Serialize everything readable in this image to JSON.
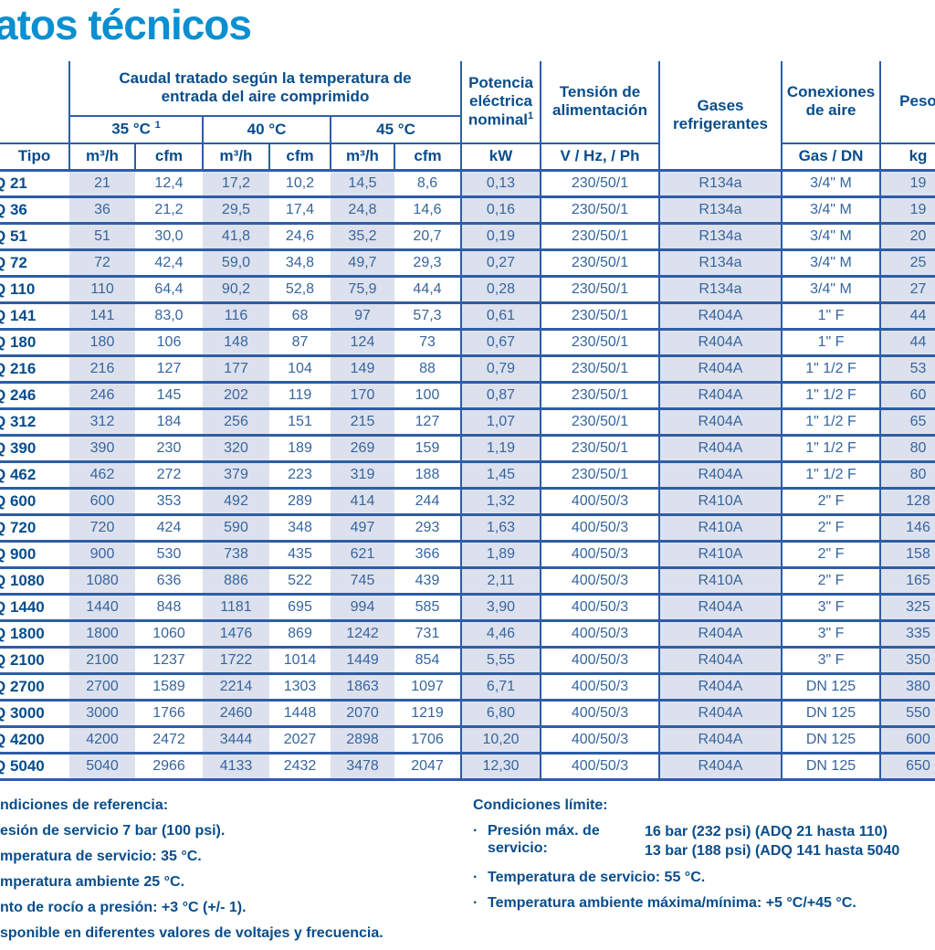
{
  "page": {
    "title": "atos técnicos"
  },
  "table": {
    "header": {
      "caudal": "Caudal tratado según la temperatura de entrada del aire comprimido",
      "temp35": "35 °C",
      "temp35_sup": "1",
      "temp40": "40 °C",
      "temp45": "45 °C",
      "potencia": "Potencia eléctrica nominal",
      "potencia_sup": "1",
      "tension": "Tensión de alimentación",
      "gases": "Gases refrigerantes",
      "conexiones": "Conexiones de aire",
      "peso": "Peso",
      "tipo": "Tipo",
      "unit_m3h": "m³/h",
      "unit_cfm": "cfm",
      "unit_kw": "kW",
      "unit_vhzph": "V / Hz, / Ph",
      "unit_gasdn": "Gas / DN",
      "unit_kg": "kg"
    },
    "rows": [
      [
        "Q 21",
        "21",
        "12,4",
        "17,2",
        "10,2",
        "14,5",
        "8,6",
        "0,13",
        "230/50/1",
        "R134a",
        "3/4\" M",
        "19"
      ],
      [
        "Q 36",
        "36",
        "21,2",
        "29,5",
        "17,4",
        "24,8",
        "14,6",
        "0,16",
        "230/50/1",
        "R134a",
        "3/4\" M",
        "19"
      ],
      [
        "Q 51",
        "51",
        "30,0",
        "41,8",
        "24,6",
        "35,2",
        "20,7",
        "0,19",
        "230/50/1",
        "R134a",
        "3/4\" M",
        "20"
      ],
      [
        "Q 72",
        "72",
        "42,4",
        "59,0",
        "34,8",
        "49,7",
        "29,3",
        "0,27",
        "230/50/1",
        "R134a",
        "3/4\" M",
        "25"
      ],
      [
        "Q 110",
        "110",
        "64,4",
        "90,2",
        "52,8",
        "75,9",
        "44,4",
        "0,28",
        "230/50/1",
        "R134a",
        "3/4\" M",
        "27"
      ],
      [
        "Q 141",
        "141",
        "83,0",
        "116",
        "68",
        "97",
        "57,3",
        "0,61",
        "230/50/1",
        "R404A",
        "1\" F",
        "44"
      ],
      [
        "Q 180",
        "180",
        "106",
        "148",
        "87",
        "124",
        "73",
        "0,67",
        "230/50/1",
        "R404A",
        "1\" F",
        "44"
      ],
      [
        "Q 216",
        "216",
        "127",
        "177",
        "104",
        "149",
        "88",
        "0,79",
        "230/50/1",
        "R404A",
        "1\" 1/2 F",
        "53"
      ],
      [
        "Q 246",
        "246",
        "145",
        "202",
        "119",
        "170",
        "100",
        "0,87",
        "230/50/1",
        "R404A",
        "1\" 1/2 F",
        "60"
      ],
      [
        "Q 312",
        "312",
        "184",
        "256",
        "151",
        "215",
        "127",
        "1,07",
        "230/50/1",
        "R404A",
        "1\" 1/2 F",
        "65"
      ],
      [
        "Q 390",
        "390",
        "230",
        "320",
        "189",
        "269",
        "159",
        "1,19",
        "230/50/1",
        "R404A",
        "1\" 1/2 F",
        "80"
      ],
      [
        "Q 462",
        "462",
        "272",
        "379",
        "223",
        "319",
        "188",
        "1,45",
        "230/50/1",
        "R404A",
        "1\" 1/2 F",
        "80"
      ],
      [
        "Q 600",
        "600",
        "353",
        "492",
        "289",
        "414",
        "244",
        "1,32",
        "400/50/3",
        "R410A",
        "2\" F",
        "128"
      ],
      [
        "Q 720",
        "720",
        "424",
        "590",
        "348",
        "497",
        "293",
        "1,63",
        "400/50/3",
        "R410A",
        "2\" F",
        "146"
      ],
      [
        "Q 900",
        "900",
        "530",
        "738",
        "435",
        "621",
        "366",
        "1,89",
        "400/50/3",
        "R410A",
        "2\" F",
        "158"
      ],
      [
        "Q 1080",
        "1080",
        "636",
        "886",
        "522",
        "745",
        "439",
        "2,11",
        "400/50/3",
        "R410A",
        "2\" F",
        "165"
      ],
      [
        "Q 1440",
        "1440",
        "848",
        "1181",
        "695",
        "994",
        "585",
        "3,90",
        "400/50/3",
        "R404A",
        "3\" F",
        "325"
      ],
      [
        "Q 1800",
        "1800",
        "1060",
        "1476",
        "869",
        "1242",
        "731",
        "4,46",
        "400/50/3",
        "R404A",
        "3\" F",
        "335"
      ],
      [
        "Q 2100",
        "2100",
        "1237",
        "1722",
        "1014",
        "1449",
        "854",
        "5,55",
        "400/50/3",
        "R404A",
        "3\" F",
        "350"
      ],
      [
        "Q 2700",
        "2700",
        "1589",
        "2214",
        "1303",
        "1863",
        "1097",
        "6,71",
        "400/50/3",
        "R404A",
        "DN 125",
        "380"
      ],
      [
        "Q 3000",
        "3000",
        "1766",
        "2460",
        "1448",
        "2070",
        "1219",
        "6,80",
        "400/50/3",
        "R404A",
        "DN 125",
        "550"
      ],
      [
        "Q 4200",
        "4200",
        "2472",
        "3444",
        "2027",
        "2898",
        "1706",
        "10,20",
        "400/50/3",
        "R404A",
        "DN 125",
        "600"
      ],
      [
        "Q 5040",
        "5040",
        "2966",
        "4133",
        "2432",
        "3478",
        "2047",
        "12,30",
        "400/50/3",
        "R404A",
        "DN 125",
        "650"
      ]
    ]
  },
  "footnotes": {
    "left": {
      "line1": "ndiciones de referencia:",
      "line2": "esión de servicio 7 bar (100 psi).",
      "line3": "mperatura de servicio: 35 °C.",
      "line4": "mperatura ambiente 25 °C.",
      "line5": "nto de rocío a presión: +3 °C (+/- 1).",
      "line6": "sponible en diferentes valores de voltajes y frecuencia."
    },
    "right": {
      "title": "Condiciones límite:",
      "bullet": "·",
      "pressure_label": "Presión máx. de servicio:",
      "pressure_value1": "16 bar (232 psi) (ADQ 21 hasta 110)",
      "pressure_value2": "13 bar (188 psi) (ADQ 141 hasta 5040",
      "temp_service": "Temperatura de servicio: 55 °C.",
      "temp_ambient": "Temperatura ambiente máxima/mínima: +5 °C/+45 °C."
    }
  },
  "colors": {
    "title": "#0a8fd0",
    "header_text": "#084d8c",
    "data_text": "#36659f",
    "grid_line": "#2e5da6",
    "cell_fill": "#dde1ed"
  }
}
